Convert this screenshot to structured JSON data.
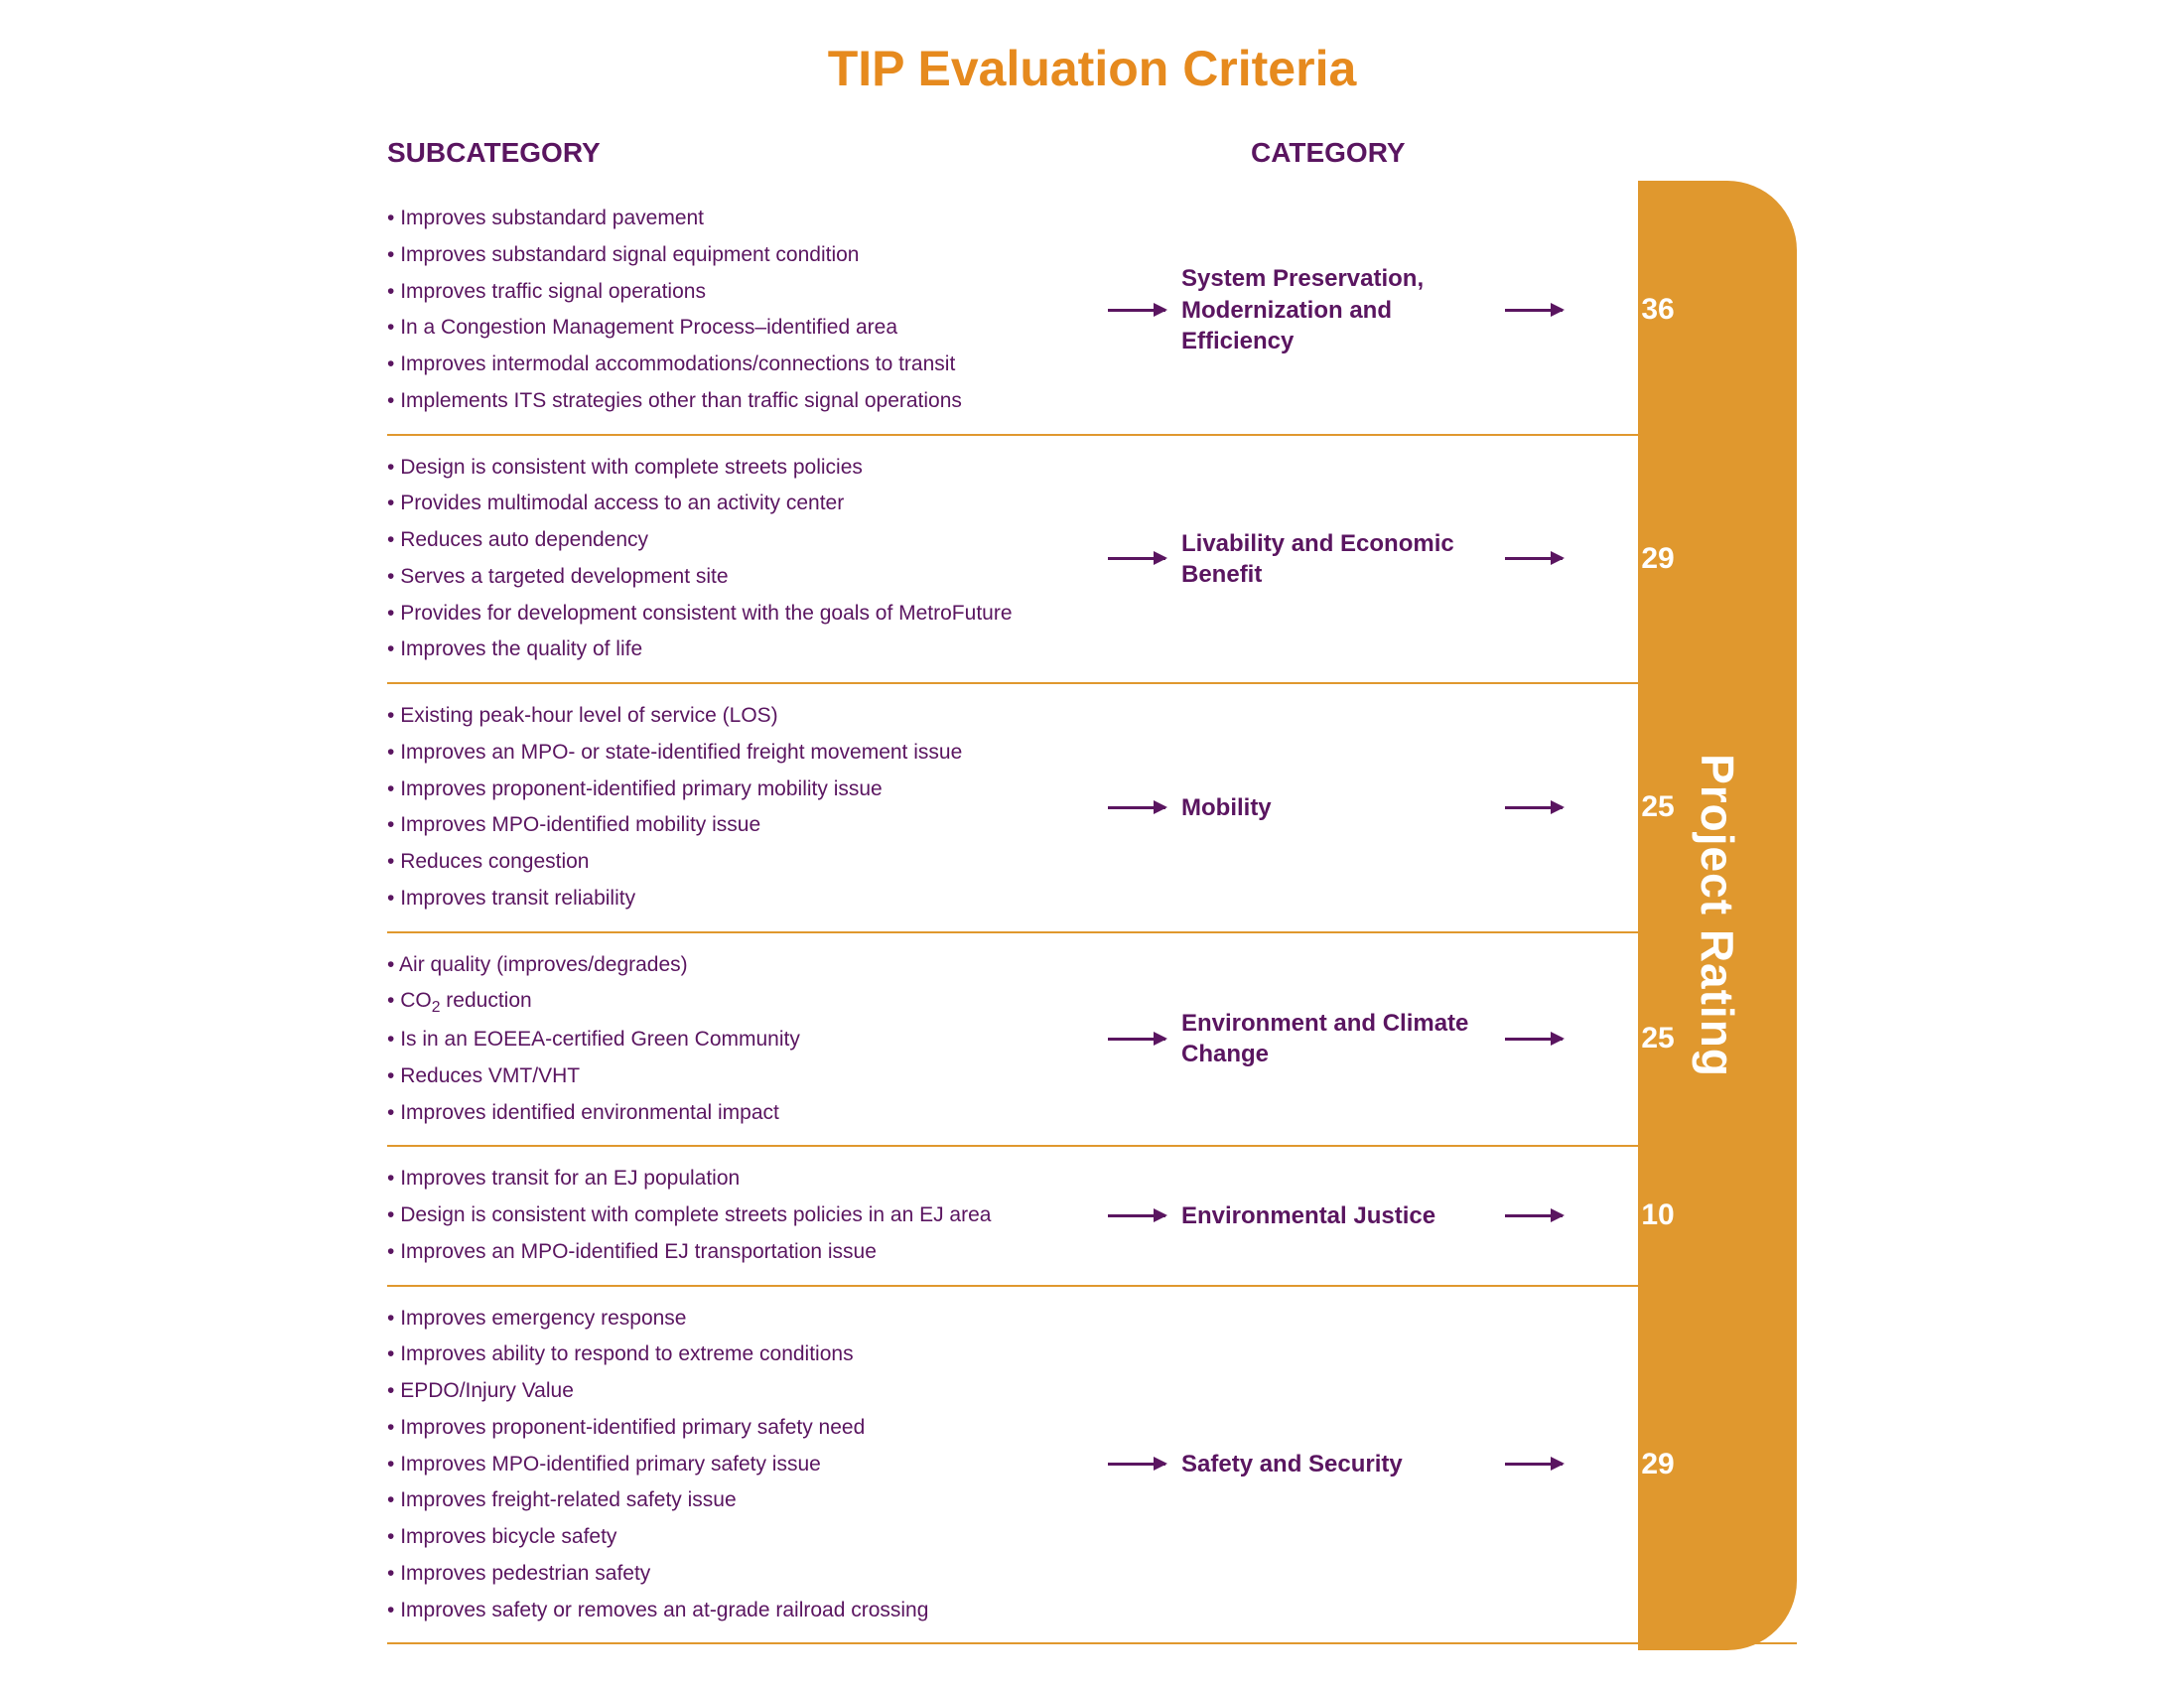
{
  "colors": {
    "title": "#e68a1e",
    "purple": "#5a1560",
    "band": "#e0982e",
    "divider": "#e0982e",
    "arrow": "#5a1560",
    "score_text": "#ffffff",
    "background": "#ffffff"
  },
  "title": "TIP Evaluation Criteria",
  "headers": {
    "subcategory": "SUBCATEGORY",
    "category": "CATEGORY"
  },
  "band_label": "Project Rating",
  "rows": [
    {
      "category": "System Preservation, Modernization and Efficiency",
      "score": "36",
      "items": [
        "Improves substandard pavement",
        "Improves substandard signal equipment condition",
        "Improves traffic signal operations",
        "In a Congestion Management Process–identified area",
        "Improves intermodal accommodations/connections to transit",
        "Implements ITS strategies other than traffic signal operations"
      ]
    },
    {
      "category": "Livability and Economic Benefit",
      "score": "29",
      "items": [
        "Design is consistent with complete streets policies",
        "Provides multimodal access to an activity center",
        "Reduces auto dependency",
        "Serves a targeted development site",
        "Provides for development consistent with the goals of MetroFuture",
        "Improves the quality of life"
      ]
    },
    {
      "category": "Mobility",
      "score": "25",
      "items": [
        "Existing peak-hour level of service (LOS)",
        "Improves an MPO- or state-identified freight movement issue",
        "Improves proponent-identified primary mobility issue",
        "Improves MPO-identified mobility issue",
        "Reduces congestion",
        "Improves transit reliability"
      ]
    },
    {
      "category": "Environment and Climate Change",
      "score": "25",
      "items": [
        "Air quality (improves/degrades)",
        "CO<span class=\"sub2\">2</span> reduction",
        "Is in an EOEEA-certified Green Community",
        "Reduces VMT/VHT",
        "Improves identified environmental impact"
      ]
    },
    {
      "category": "Environmental Justice",
      "score": "10",
      "items": [
        "Improves transit for an EJ population",
        "Design is consistent with complete streets policies in an EJ area",
        "Improves an MPO-identified EJ transportation issue"
      ]
    },
    {
      "category": "Safety and Security",
      "score": "29",
      "items": [
        "Improves emergency response",
        "Improves ability to respond to extreme conditions",
        "EPDO/Injury Value",
        "Improves proponent-identified primary safety need",
        "Improves MPO-identified primary safety issue",
        "Improves freight-related safety issue",
        "Improves bicycle safety",
        "Improves pedestrian safety",
        "Improves safety or removes an at-grade railroad crossing"
      ]
    }
  ]
}
